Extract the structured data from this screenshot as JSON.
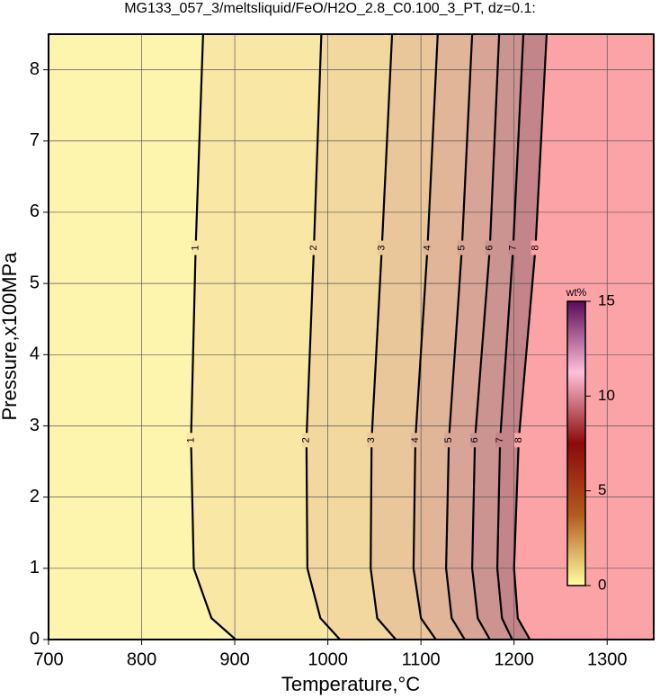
{
  "chart_data": {
    "type": "contour",
    "title": "MG133_057_3/meltsliquid/FeO/H2O_2.8_C0.100_3_PT, dz=0.1:",
    "x_label": "Temperature,°C",
    "y_label": "Pressure,x100MPa",
    "xlim": [
      700,
      1350
    ],
    "ylim": [
      0,
      8.5
    ],
    "xticks": [
      700,
      800,
      900,
      1000,
      1100,
      1200,
      1300
    ],
    "yticks": [
      0,
      1,
      2,
      3,
      4,
      5,
      6,
      7,
      8
    ],
    "grid": true,
    "y": [
      0,
      0.3,
      1,
      2.8,
      5.5,
      8.5
    ],
    "series": [
      {
        "name": "1",
        "x": [
          901,
          875,
          856,
          853,
          858,
          866
        ]
      },
      {
        "name": "2",
        "x": [
          1013,
          992,
          978,
          977,
          985,
          993
        ]
      },
      {
        "name": "3",
        "x": [
          1073,
          1053,
          1046,
          1047,
          1058,
          1069
        ]
      },
      {
        "name": "4",
        "x": [
          1116,
          1100,
          1092,
          1094,
          1107,
          1118
        ]
      },
      {
        "name": "5",
        "x": [
          1147,
          1133,
          1127,
          1130,
          1144,
          1155
        ]
      },
      {
        "name": "6",
        "x": [
          1174,
          1161,
          1155,
          1158,
          1174,
          1184
        ]
      },
      {
        "name": "7",
        "x": [
          1198,
          1187,
          1182,
          1185,
          1199,
          1210
        ]
      },
      {
        "name": "8",
        "x": [
          1217,
          1204,
          1200,
          1205,
          1223,
          1235
        ]
      }
    ],
    "fill_colors": [
      "#fdf5ae",
      "#f9e8a5",
      "#f2d89f",
      "#eac79a",
      "#e1b597",
      "#d7a495",
      "#cc9490",
      "#c3858a",
      "#fca3a8"
    ],
    "colorbar": {
      "label": "wt%",
      "lim": [
        0,
        15
      ],
      "ticks": [
        0,
        5,
        10,
        15
      ],
      "colors": [
        "#ffffa0",
        "#b35a1e",
        "#8a0a0a",
        "#ffc0d8",
        "#5a0a5a"
      ]
    }
  }
}
